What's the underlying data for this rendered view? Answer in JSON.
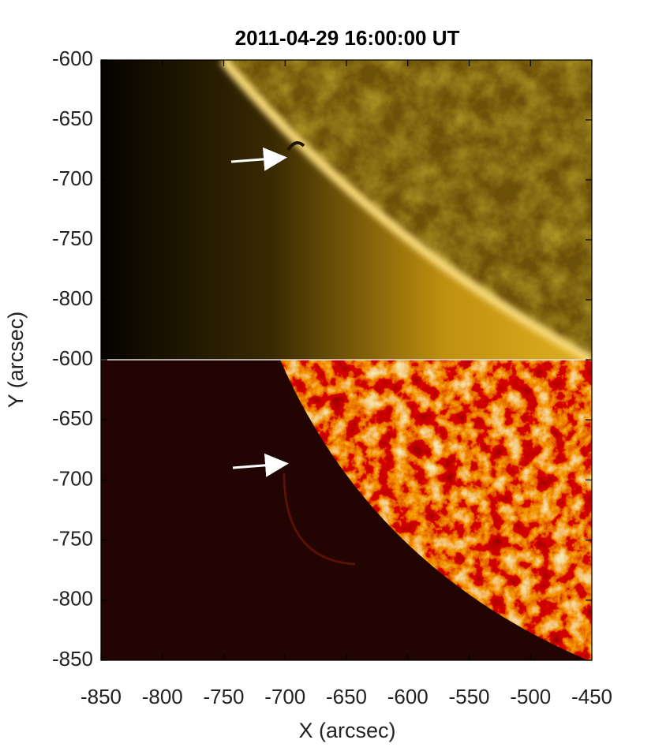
{
  "chart_data": [
    {
      "type": "image",
      "title": "2011-04-29 16:00:00 UT",
      "ylim": [
        -850,
        -600
      ],
      "yticks": [
        -600,
        -650,
        -700,
        -750,
        -800
      ]
    },
    {
      "type": "image",
      "xlabel": "X (arcsec)",
      "ylabel": "Y (arcsec)",
      "xlim": [
        -850,
        -450
      ],
      "xticks": [
        -850,
        -800,
        -750,
        -700,
        -650,
        -600,
        -550,
        -500,
        -450
      ],
      "ylim": [
        -850,
        -600
      ],
      "yticks": [
        -600,
        -650,
        -700,
        -750,
        -800,
        -850
      ]
    }
  ]
}
